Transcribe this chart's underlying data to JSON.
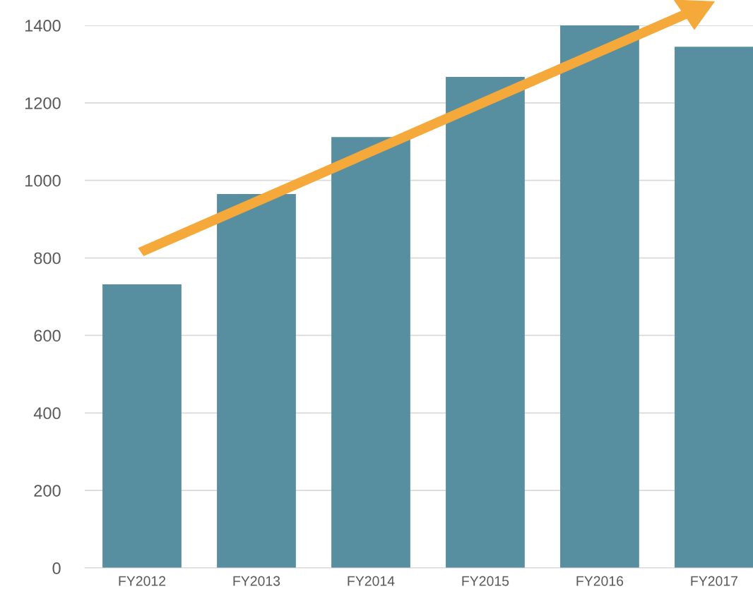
{
  "chart_data": {
    "type": "bar",
    "categories": [
      "FY2012",
      "FY2013",
      "FY2014",
      "FY2015",
      "FY2016",
      "FY2017"
    ],
    "values": [
      732,
      965,
      1112,
      1267,
      1400,
      1345
    ],
    "color": "#578fa0",
    "ylim": [
      0,
      1400
    ],
    "yticks": [
      0,
      200,
      400,
      600,
      800,
      1000,
      1200,
      1400
    ],
    "grid": "y"
  }
}
